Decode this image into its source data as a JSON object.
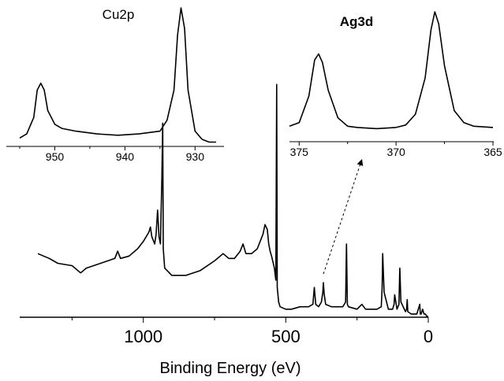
{
  "chart_data": [
    {
      "type": "line",
      "panel": "main",
      "xlabel": "Binding Energy (eV)",
      "ylabel": "",
      "xlim": [
        1370,
        0
      ],
      "reversed_x": true,
      "yticks_shown": false,
      "xticks": [
        1000,
        500,
        0
      ],
      "xtick_labels": [
        "1000",
        "500",
        "0"
      ],
      "series": [
        {
          "values_unit": "relative intensity (0-100)",
          "x": [
            1370,
            1330,
            1300,
            1250,
            1220,
            1200,
            1150,
            1100,
            1090,
            1080,
            1050,
            1020,
            1000,
            990,
            980,
            975,
            970,
            960,
            955,
            950,
            945,
            940,
            935,
            932,
            930,
            925,
            900,
            850,
            800,
            750,
            720,
            700,
            680,
            660,
            650,
            640,
            620,
            600,
            580,
            573,
            565,
            560,
            555,
            550,
            540,
            535,
            532,
            530,
            525,
            520,
            500,
            480,
            450,
            420,
            405,
            400,
            395,
            385,
            375,
            370,
            368,
            365,
            360,
            340,
            300,
            290,
            287,
            284,
            280,
            250,
            233,
            220,
            200,
            180,
            165,
            162,
            160,
            155,
            140,
            125,
            120,
            118,
            110,
            103,
            100,
            96,
            80,
            76,
            74,
            72,
            60,
            40,
            30,
            28,
            25,
            20,
            15,
            10,
            5,
            0
          ],
          "y": [
            26,
            24,
            22,
            21,
            18,
            20,
            22,
            24,
            27,
            24,
            25,
            28,
            31,
            33,
            35,
            37,
            33,
            30,
            34,
            44,
            33,
            30,
            57,
            80,
            28,
            20,
            17,
            17,
            19,
            23,
            26,
            24,
            24,
            27,
            30,
            26,
            26,
            28,
            34,
            38,
            36,
            30,
            27,
            25,
            20,
            15,
            96,
            12,
            6,
            4,
            3,
            3,
            4,
            4,
            5,
            12,
            5,
            4,
            6,
            10,
            14,
            9,
            5,
            4,
            4,
            6,
            30,
            5,
            4,
            3,
            5,
            3,
            3,
            3,
            4,
            12,
            26,
            10,
            3,
            3,
            5,
            9,
            3,
            5,
            20,
            6,
            2,
            3,
            7,
            2,
            1,
            1,
            5,
            1,
            1,
            3,
            1,
            1,
            0,
            0
          ]
        }
      ],
      "annotations": [
        {
          "type": "dashed-arrow",
          "from_x": 368,
          "to": "Ag3d inset"
        }
      ]
    },
    {
      "type": "line",
      "panel": "inset",
      "title": "Cu2p",
      "xlim": [
        955,
        927
      ],
      "reversed_x": true,
      "xticks": [
        950,
        940,
        930
      ],
      "xtick_labels": [
        "950",
        "940",
        "930"
      ],
      "series": [
        {
          "values_unit": "relative intensity (0-100)",
          "x": [
            955,
            954,
            953,
            952.5,
            952,
            951.5,
            951,
            950,
            949,
            947,
            944,
            941,
            938,
            935,
            934,
            933,
            932.5,
            932,
            931.5,
            931,
            930,
            929,
            928,
            927
          ],
          "y": [
            5,
            8,
            20,
            40,
            45,
            40,
            25,
            15,
            12,
            10,
            8,
            7,
            8,
            10,
            18,
            40,
            80,
            100,
            85,
            40,
            10,
            4,
            2,
            2
          ]
        }
      ]
    },
    {
      "type": "line",
      "panel": "inset",
      "title": "Ag3d",
      "title_bold": true,
      "xlim": [
        375.5,
        365
      ],
      "reversed_x": true,
      "xticks": [
        375,
        370,
        365
      ],
      "xtick_labels": [
        "375",
        "370",
        "365"
      ],
      "series": [
        {
          "values_unit": "relative intensity (0-100)",
          "x": [
            375.5,
            375,
            374.5,
            374.2,
            374,
            373.8,
            373.5,
            373,
            372.5,
            372,
            371,
            370,
            369.5,
            369,
            368.5,
            368.2,
            368,
            367.8,
            367.5,
            367,
            366.5,
            366,
            365
          ],
          "y": [
            5,
            8,
            30,
            60,
            65,
            58,
            35,
            12,
            5,
            4,
            3,
            4,
            6,
            15,
            45,
            85,
            100,
            90,
            55,
            18,
            8,
            5,
            4
          ]
        }
      ]
    }
  ]
}
